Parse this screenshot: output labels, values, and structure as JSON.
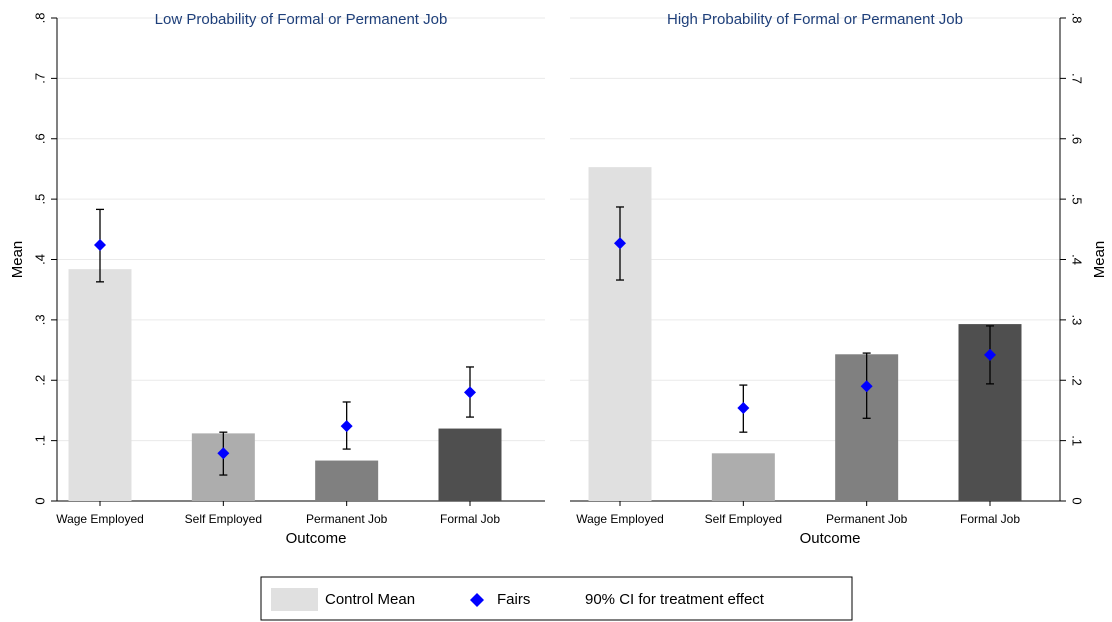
{
  "chart_data": [
    {
      "type": "bar",
      "title": "Low Probability of Formal or Permanent Job",
      "x_label": "Outcome",
      "y_label": "Mean",
      "y_axis_side": "left",
      "categories": [
        "Wage Employed",
        "Self Employed",
        "Permanent Job",
        "Formal Job"
      ],
      "series": [
        {
          "name": "Control Mean",
          "colors": [
            "#e0e0e0",
            "#adadad",
            "#808080",
            "#4f4f4f"
          ],
          "values": [
            0.384,
            0.112,
            0.067,
            0.12
          ]
        },
        {
          "name": "Fairs",
          "color": "#0000ff",
          "values": [
            0.424,
            0.079,
            0.124,
            0.18
          ]
        }
      ],
      "ci": {
        "name": "90% CI for treatment effect",
        "color": "#000000",
        "low": [
          0.363,
          0.043,
          0.086,
          0.139
        ],
        "high": [
          0.483,
          0.114,
          0.164,
          0.222
        ]
      },
      "ylim": [
        0,
        0.8
      ],
      "yticks": [
        0,
        {
          "value": 0.1,
          "label": ".1"
        },
        {
          "value": 0.2,
          "label": ".2"
        },
        {
          "value": 0.3,
          "label": ".3"
        },
        {
          "value": 0.4,
          "label": ".4"
        },
        {
          "value": 0.5,
          "label": ".5"
        },
        {
          "value": 0.6,
          "label": ".6"
        },
        {
          "value": 0.7,
          "label": ".7"
        },
        {
          "value": 0.8,
          "label": ".8"
        }
      ],
      "grid": true
    },
    {
      "type": "bar",
      "title": "High Probability of Formal or Permanent Job",
      "x_label": "Outcome",
      "y_label": "Mean",
      "y_axis_side": "right",
      "categories": [
        "Wage Employed",
        "Self Employed",
        "Permanent Job",
        "Formal Job"
      ],
      "series": [
        {
          "colors": [
            "#e0e0e0",
            "#adadad",
            "#808080",
            "#4f4f4f"
          ],
          "values": [
            0.553,
            0.079,
            0.243,
            0.293
          ]
        },
        {
          "color": "#0000ff",
          "values": [
            0.427,
            0.154,
            0.19,
            0.242
          ]
        }
      ],
      "ci": {
        "color": "#000000",
        "low": [
          0.366,
          0.114,
          0.137,
          0.194
        ],
        "high": [
          0.487,
          0.192,
          0.245,
          0.29
        ]
      },
      "ylim": [
        0,
        0.8
      ],
      "yticks": [
        0,
        {
          "value": 0.1,
          "label": ".1"
        },
        {
          "value": 0.2,
          "label": ".2"
        },
        {
          "value": 0.3,
          "label": ".3"
        },
        {
          "value": 0.4,
          "label": ".4"
        },
        {
          "value": 0.5,
          "label": ".5"
        },
        {
          "value": 0.6,
          "label": ".6"
        },
        {
          "value": 0.7,
          "label": ".7"
        },
        {
          "value": 0.8,
          "label": ".8"
        }
      ],
      "grid": true
    }
  ]
}
